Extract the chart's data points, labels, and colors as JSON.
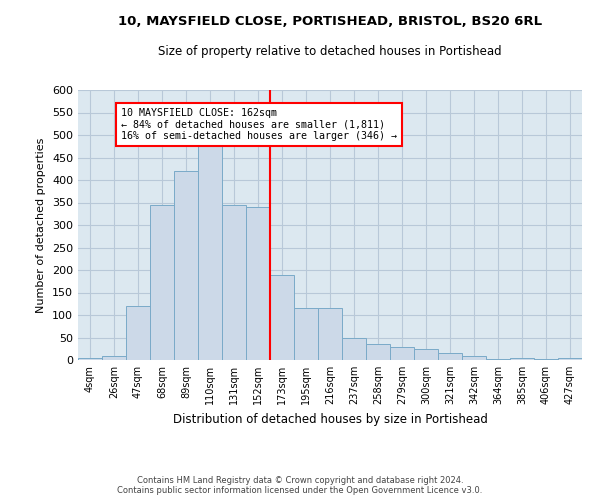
{
  "title": "10, MAYSFIELD CLOSE, PORTISHEAD, BRISTOL, BS20 6RL",
  "subtitle": "Size of property relative to detached houses in Portishead",
  "xlabel": "Distribution of detached houses by size in Portishead",
  "ylabel": "Number of detached properties",
  "bar_color": "#ccd9e8",
  "bar_edge_color": "#7aaac8",
  "grid_color": "#b8c8d8",
  "background_color": "#dce8f0",
  "tick_labels": [
    "4sqm",
    "26sqm",
    "47sqm",
    "68sqm",
    "89sqm",
    "110sqm",
    "131sqm",
    "152sqm",
    "173sqm",
    "195sqm",
    "216sqm",
    "237sqm",
    "258sqm",
    "279sqm",
    "300sqm",
    "321sqm",
    "342sqm",
    "364sqm",
    "385sqm",
    "406sqm",
    "427sqm"
  ],
  "bar_values": [
    5,
    10,
    120,
    345,
    420,
    510,
    345,
    340,
    190,
    115,
    115,
    50,
    35,
    30,
    25,
    15,
    10,
    3,
    5,
    3,
    5
  ],
  "vline_x": 7.5,
  "annotation_title": "10 MAYSFIELD CLOSE: 162sqm",
  "annotation_line1": "← 84% of detached houses are smaller (1,811)",
  "annotation_line2": "16% of semi-detached houses are larger (346) →",
  "footer_line1": "Contains HM Land Registry data © Crown copyright and database right 2024.",
  "footer_line2": "Contains public sector information licensed under the Open Government Licence v3.0.",
  "ylim": [
    0,
    600
  ],
  "yticks": [
    0,
    50,
    100,
    150,
    200,
    250,
    300,
    350,
    400,
    450,
    500,
    550,
    600
  ]
}
